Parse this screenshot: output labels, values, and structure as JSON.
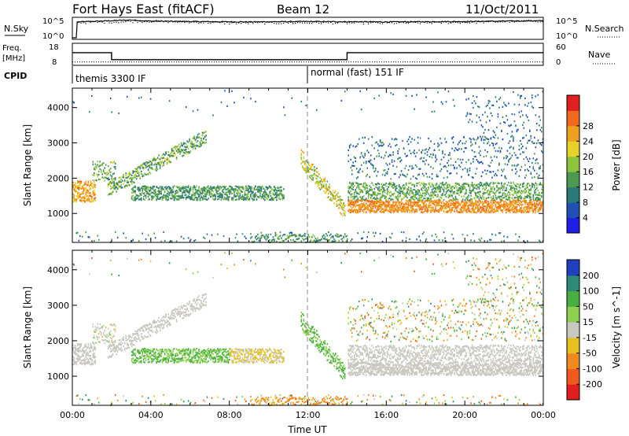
{
  "header": {
    "radar_title": "Fort Hays East (fitACF)",
    "beam_label": "Beam 12",
    "date_label": "11/Oct/2011"
  },
  "chart_data": [
    {
      "type": "line",
      "panel": "noise",
      "left_label": "N.Sky",
      "right_label": "N.Search",
      "left_ticks": [
        "10^5",
        "10^0"
      ],
      "right_ticks": [
        "10^5",
        "10^0"
      ],
      "series": [
        {
          "name": "N.Sky",
          "x": [
            0.0,
            0.2,
            0.25,
            3.0,
            4.0,
            6.0,
            9.0,
            12.0,
            16.0,
            20.0,
            24.0
          ],
          "y_log10": [
            0.0,
            0.0,
            4.2,
            4.7,
            4.4,
            4.3,
            4.2,
            4.3,
            4.2,
            4.3,
            4.5
          ]
        },
        {
          "name": "N.Search",
          "x": [
            0.0,
            4.0,
            8.0,
            12.0,
            16.0,
            20.0,
            24.0
          ],
          "y_log10": [
            4.1,
            4.5,
            4.0,
            4.1,
            4.0,
            4.2,
            4.6
          ]
        }
      ]
    },
    {
      "type": "line",
      "panel": "frequency",
      "left_label": "Freq.",
      "left_unit": "[MHz]",
      "right_label": "Nave",
      "left_ticks": [
        18,
        8
      ],
      "right_ticks": [
        60,
        0
      ],
      "series": [
        {
          "name": "Freq.",
          "x": [
            0.0,
            2.0,
            2.0,
            14.0,
            14.0,
            24.0
          ],
          "y": [
            14.3,
            14.3,
            10.6,
            10.6,
            14.3,
            14.3
          ]
        },
        {
          "name": "Nave",
          "x": [
            0.0,
            24.0
          ],
          "y": [
            8,
            8
          ]
        }
      ]
    },
    {
      "type": "table",
      "panel": "cpid",
      "label": "CPID",
      "segments": [
        {
          "start": 0.0,
          "end": 12.0,
          "text": "themis 3300 IF"
        },
        {
          "start": 12.0,
          "end": 24.0,
          "text": "normal (fast) 151 IF"
        }
      ]
    },
    {
      "type": "heatmap",
      "panel": "power",
      "ylabel": "Slant Range [km]",
      "yticks": [
        1000,
        2000,
        3000,
        4000
      ],
      "ylim": [
        180,
        4550
      ],
      "colorbar_label": "Power [dB]",
      "colorbar_ticks": [
        4,
        8,
        12,
        16,
        20,
        24,
        28
      ],
      "colorbar_colors": [
        "#1e1ee6",
        "#2050b4",
        "#2c7a78",
        "#4c9a50",
        "#8cc43c",
        "#e6d228",
        "#f0a020",
        "#f06a1e",
        "#e0201e"
      ],
      "scatter_regions": [
        {
          "t": [
            0.0,
            1.2
          ],
          "r": [
            1300,
            2000
          ],
          "p": 27
        },
        {
          "t": [
            1.0,
            2.2
          ],
          "r": [
            1950,
            2500
          ],
          "p": 18
        },
        {
          "t": [
            1.8,
            6.8
          ],
          "r": [
            1600,
            3300
          ],
          "p": 14,
          "trend": "rising"
        },
        {
          "t": [
            3.0,
            10.8
          ],
          "r": [
            1400,
            1800
          ],
          "p": 13
        },
        {
          "t": [
            11.6,
            13.9
          ],
          "r": [
            900,
            2600
          ],
          "p": 20,
          "trend": "falling"
        },
        {
          "t": [
            14.0,
            24.0
          ],
          "r": [
            1050,
            1400
          ],
          "p": 27
        },
        {
          "t": [
            14.0,
            24.0
          ],
          "r": [
            1400,
            1900
          ],
          "p": 15
        },
        {
          "t": [
            14.0,
            24.0
          ],
          "r": [
            2000,
            3200
          ],
          "p": 8
        }
      ]
    },
    {
      "type": "heatmap",
      "panel": "velocity",
      "ylabel": "Slant Range [km]",
      "yticks": [
        1000,
        2000,
        3000,
        4000
      ],
      "ylim": [
        180,
        4550
      ],
      "colorbar_label": "Velocity [m s^-1]",
      "colorbar_ticks": [
        200,
        100,
        50,
        15,
        -15,
        -50,
        -100,
        -200
      ],
      "colorbar_colors": [
        "#2040c0",
        "#2e8a78",
        "#48b040",
        "#8ed050",
        "#c8c8c0",
        "#e6c020",
        "#f08a1e",
        "#f05a1e",
        "#e01e1e"
      ],
      "xlabel": "Time UT",
      "xticks": [
        "00:00",
        "04:00",
        "08:00",
        "12:00",
        "16:00",
        "20:00",
        "00:00"
      ],
      "xlim": [
        0,
        24
      ]
    }
  ]
}
